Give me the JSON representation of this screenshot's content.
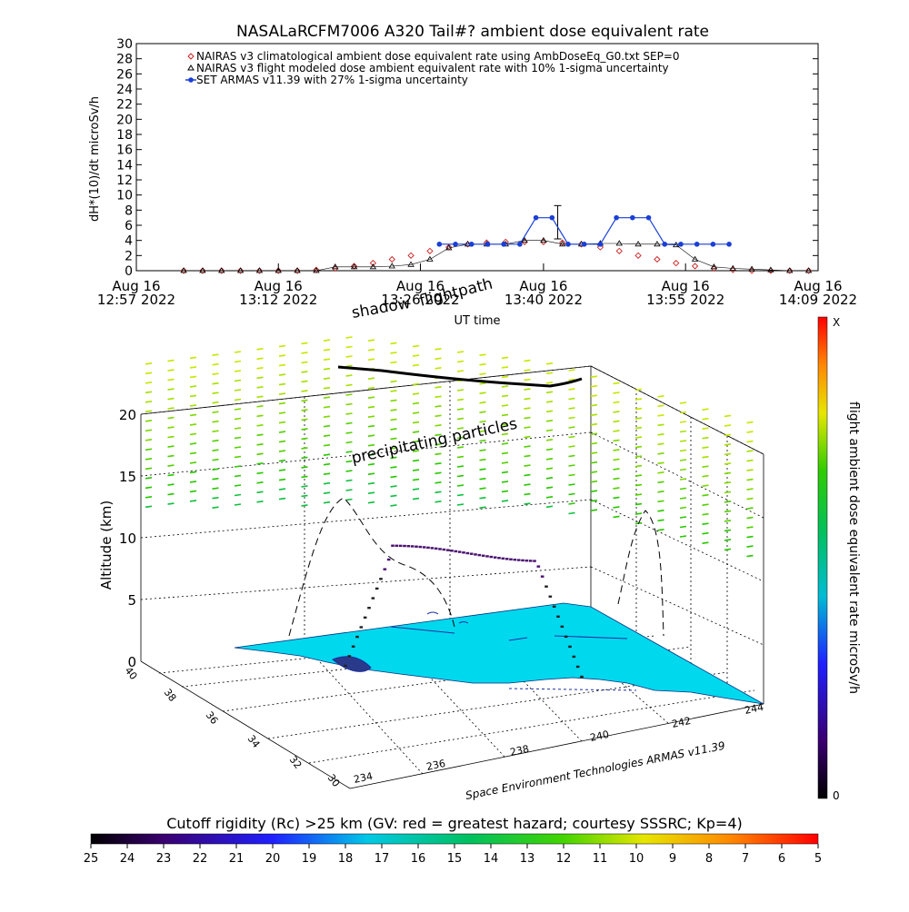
{
  "chart_data": [
    {
      "type": "line",
      "title": "NASALaRCFM7006  A320 Tail#? ambient dose equivalent rate",
      "ylabel": "dH*(10)/dt microSv/h",
      "xlabel": "UT time",
      "ylim": [
        0,
        30
      ],
      "yticks": [
        0,
        2,
        4,
        6,
        8,
        10,
        12,
        14,
        16,
        18,
        20,
        22,
        24,
        26,
        28,
        30
      ],
      "xlim_minutes": [
        0,
        72
      ],
      "xtick_minutes": [
        0,
        15,
        30,
        43,
        58,
        72
      ],
      "xtick_labels": [
        [
          "Aug 16",
          "12:57 2022"
        ],
        [
          "Aug 16",
          "13:12 2022"
        ],
        [
          "Aug 16",
          "13:26 2022"
        ],
        [
          "Aug 16",
          "13:40 2022"
        ],
        [
          "Aug 16",
          "13:55 2022"
        ],
        [
          "Aug 16",
          "14:09 2022"
        ]
      ],
      "legend_position": "top-left",
      "series": [
        {
          "name": "NAIRAS v3 climatological ambient dose equivalent rate using AmbDoseEq_G0.txt SEP=0",
          "marker": "diamond",
          "color": "#cc2222",
          "x": [
            5,
            7,
            9,
            11,
            13,
            15,
            17,
            19,
            21,
            23,
            25,
            27,
            29,
            31,
            33,
            35,
            37,
            39,
            41,
            43,
            45,
            47,
            49,
            51,
            53,
            55,
            57,
            59,
            61,
            63,
            65,
            67,
            69,
            71
          ],
          "y": [
            0,
            0,
            0,
            0,
            0,
            0,
            0,
            0.1,
            0.3,
            0.6,
            1.0,
            1.5,
            2.0,
            2.6,
            3.1,
            3.5,
            3.7,
            3.8,
            3.8,
            3.8,
            3.7,
            3.5,
            3.1,
            2.6,
            2.0,
            1.5,
            1.0,
            0.6,
            0.3,
            0.1,
            0,
            0,
            0,
            0
          ]
        },
        {
          "name": "NAIRAS v3 flight modeled dose ambient equivalent rate with 10% 1-sigma uncertainty",
          "marker": "triangle",
          "color": "#000000",
          "x": [
            5,
            7,
            9,
            11,
            13,
            15,
            17,
            19,
            21,
            23,
            25,
            27,
            29,
            31,
            33,
            35,
            37,
            39,
            41,
            43,
            45,
            47,
            49,
            51,
            53,
            55,
            57,
            59,
            61,
            63,
            65,
            67,
            69,
            71
          ],
          "y": [
            0,
            0,
            0,
            0,
            0,
            0,
            0,
            0,
            0.5,
            0.5,
            0.5,
            0.6,
            0.8,
            1.5,
            3.0,
            3.5,
            3.5,
            3.5,
            4.0,
            4.0,
            3.5,
            3.5,
            3.6,
            3.6,
            3.5,
            3.5,
            3.4,
            1.5,
            0.5,
            0.3,
            0.2,
            0.1,
            0,
            0
          ]
        },
        {
          "name": "SET ARMAS v11.39 with 27% 1-sigma uncertainty",
          "marker": "circle",
          "color": "#1a3fd6",
          "x": [
            32,
            33.7,
            35.4,
            37.1,
            38.8,
            40.5,
            42.2,
            43.9,
            45.6,
            47.3,
            49,
            50.7,
            52.4,
            54.1,
            55.8,
            57.5,
            59.2,
            60.9,
            62.6
          ],
          "y": [
            3.5,
            3.5,
            3.5,
            3.5,
            3.5,
            3.5,
            7,
            7,
            3.5,
            3.5,
            3.5,
            7,
            7,
            7,
            3.5,
            3.5,
            3.5,
            3.5,
            3.5
          ]
        }
      ],
      "error_bars": [
        {
          "x": 44.5,
          "low": 4.2,
          "high": 8.6
        }
      ]
    },
    {
      "type": "scatter",
      "variant": "3d-atmosphere",
      "zlabel": "Altitude (km)",
      "zlim": [
        0,
        20
      ],
      "zticks": [
        0,
        5,
        10,
        15,
        20
      ],
      "latitude_ticks": [
        30,
        32,
        34,
        36,
        38,
        40
      ],
      "longitude_ticks": [
        234,
        236,
        238,
        240,
        242,
        244
      ],
      "annotations": [
        "shadow",
        "flightpath",
        "precipitating particles"
      ],
      "credit": "Space Environment Technologies ARMAS v11.39"
    }
  ],
  "right_colorbar": {
    "label": "flight ambient dose equivalent rate microSv/h",
    "top": "X",
    "bottom": "0"
  },
  "bottom_colorbar": {
    "title": "Cutoff rigidity (Rc) >25 km (GV: red = greatest hazard; courtesy SSSRC; Kp=4)",
    "ticks": [
      "25",
      "24",
      "23",
      "22",
      "21",
      "20",
      "19",
      "18",
      "17",
      "16",
      "15",
      "14",
      "13",
      "12",
      "11",
      "10",
      "9",
      "8",
      "7",
      "6",
      "5"
    ]
  }
}
